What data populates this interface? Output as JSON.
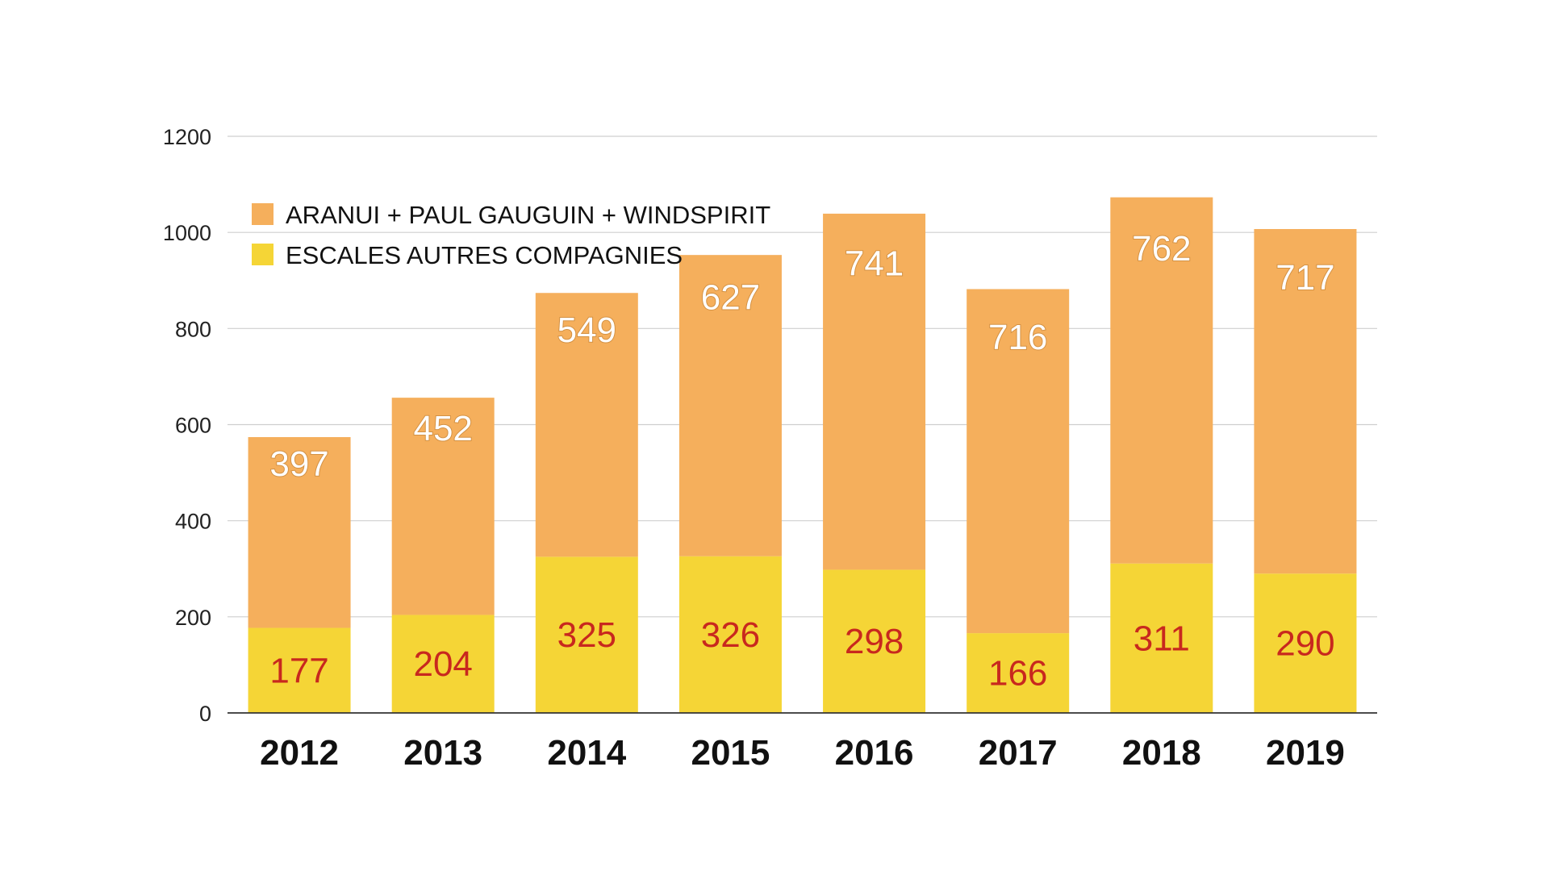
{
  "chart_data": {
    "type": "bar",
    "stacked": true,
    "categories": [
      "2012",
      "2013",
      "2014",
      "2015",
      "2016",
      "2017",
      "2018",
      "2019"
    ],
    "series": [
      {
        "name": "ESCALES AUTRES COMPAGNIES",
        "values": [
          177,
          204,
          325,
          326,
          298,
          166,
          311,
          290
        ],
        "color": "#F5D536",
        "label_color": "#C8281E"
      },
      {
        "name": "ARANUI + PAUL GAUGUIN + WINDSPIRIT",
        "values": [
          397,
          452,
          549,
          627,
          741,
          716,
          762,
          717
        ],
        "color": "#F5AF5C",
        "label_color": "#FFFFFF"
      }
    ],
    "legend_order": [
      1,
      0
    ],
    "ylim": [
      0,
      1200
    ],
    "yticks": [
      0,
      200,
      400,
      600,
      800,
      1000,
      1200
    ],
    "grid": true,
    "legend_position": "top-left",
    "gridline_color": "#CFCFCF",
    "axis_color": "#333333",
    "title": "",
    "xlabel": "",
    "ylabel": ""
  }
}
